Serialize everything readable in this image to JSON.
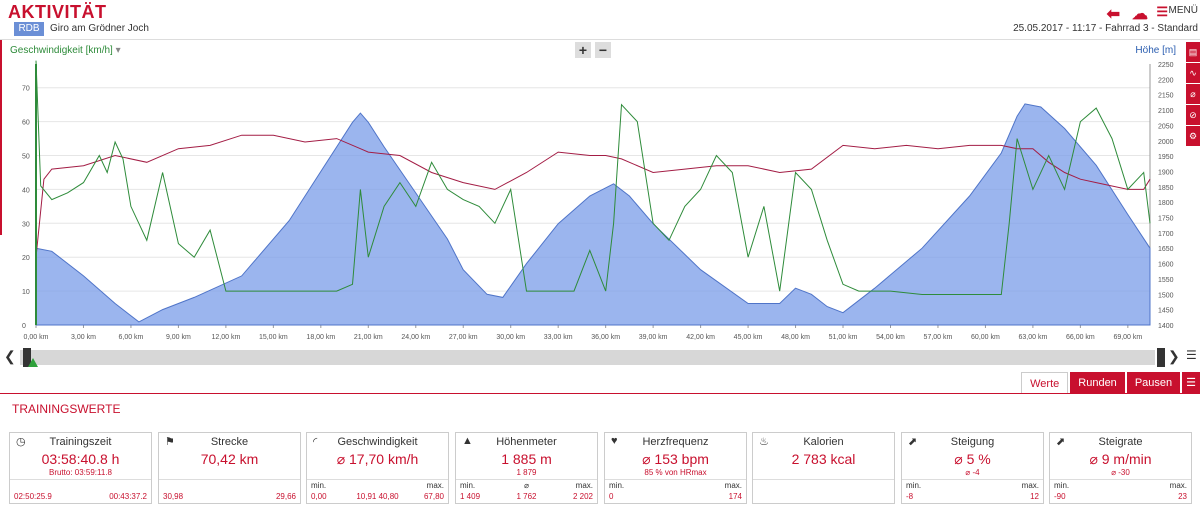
{
  "header": {
    "title": "AKTIVITÄT",
    "badge": "RDB",
    "subtitle": "Giro am Grödner Joch",
    "menu_label": "MENÜ",
    "info": "25.05.2017  -  11:17  -  Fahrrad 3  -  Standard"
  },
  "chart_controls": {
    "zoom_in": "+",
    "zoom_out": "−",
    "left_axis_label": "Geschwindigkeit [km/h]",
    "right_axis_label": "Höhe [m]",
    "dropdown_glyph": "▾"
  },
  "chart_data": {
    "type": "line",
    "x_unit": "km",
    "x_ticks": [
      "0,00 km",
      "3,00 km",
      "6,00 km",
      "9,00 km",
      "12,00 km",
      "15,00 km",
      "18,00 km",
      "21,00 km",
      "24,00 km",
      "27,00 km",
      "30,00 km",
      "33,00 km",
      "36,00 km",
      "39,00 km",
      "42,00 km",
      "45,00 km",
      "48,00 km",
      "51,00 km",
      "54,00 km",
      "57,00 km",
      "60,00 km",
      "63,00 km",
      "66,00 km",
      "69,00 km"
    ],
    "xlim": [
      0,
      70.4
    ],
    "left_axis": {
      "label": "Geschwindigkeit [km/h]",
      "ticks": [
        "0",
        "10",
        "20",
        "30",
        "40",
        "50",
        "60",
        "70"
      ],
      "ylim": [
        0,
        77
      ]
    },
    "right_axis": {
      "label": "Höhe [m]",
      "ticks": [
        "1400",
        "1450",
        "1500",
        "1550",
        "1600",
        "1650",
        "1700",
        "1750",
        "1800",
        "1850",
        "1900",
        "1950",
        "2000",
        "2050",
        "2100",
        "2150",
        "2200",
        "2250"
      ],
      "ylim": [
        1400,
        2250
      ]
    },
    "grid": true,
    "series": [
      {
        "name": "Höhe [m]",
        "axis": "right",
        "style": "area",
        "color": "#7a9ce8",
        "x": [
          0,
          1,
          3,
          5,
          6.5,
          8,
          10,
          13,
          16,
          18,
          19,
          20,
          20.5,
          21,
          22,
          24,
          26,
          27,
          28.5,
          29.5,
          31,
          33,
          35,
          36.5,
          37.5,
          39,
          42,
          45,
          47,
          48,
          49,
          50,
          51,
          53,
          56,
          59,
          61,
          62,
          62.5,
          63.5,
          65,
          67,
          69,
          70.4
        ],
        "y": [
          1650,
          1640,
          1560,
          1470,
          1410,
          1450,
          1490,
          1560,
          1740,
          1900,
          1980,
          2060,
          2090,
          2060,
          1980,
          1830,
          1680,
          1580,
          1500,
          1490,
          1600,
          1730,
          1820,
          1860,
          1820,
          1730,
          1580,
          1470,
          1470,
          1520,
          1500,
          1460,
          1440,
          1520,
          1650,
          1820,
          1960,
          2080,
          2120,
          2110,
          2040,
          1920,
          1760,
          1650
        ]
      },
      {
        "name": "",
        "axis": "left",
        "style": "line",
        "color": "#a31d45",
        "x": [
          0,
          0.5,
          1,
          3,
          5,
          7,
          9,
          11,
          13,
          15,
          17,
          19,
          20.5,
          21,
          23,
          25,
          27,
          29,
          31,
          33,
          35,
          36,
          37,
          39,
          41,
          43,
          45,
          47,
          49,
          51,
          53,
          55,
          57,
          59,
          61,
          62,
          63,
          64,
          65,
          66,
          67,
          68,
          69,
          70,
          70.4
        ],
        "y": [
          20,
          43,
          46,
          47,
          50,
          48,
          52,
          53,
          56,
          56,
          54,
          55,
          52,
          51,
          50,
          45,
          42,
          40,
          45,
          51,
          50,
          50,
          49,
          45,
          46,
          47,
          47,
          45,
          46,
          53,
          52,
          53,
          52,
          53,
          53,
          52,
          52,
          48,
          45,
          43,
          42,
          41,
          40,
          40,
          43
        ]
      },
      {
        "name": "Geschwindigkeit [km/h]",
        "axis": "left",
        "style": "line",
        "color": "#2e8b3a",
        "x": [
          0,
          0.3,
          1,
          2,
          3,
          4,
          4.5,
          5,
          5.5,
          6,
          7,
          8,
          9,
          10,
          11,
          12,
          13,
          15,
          17,
          19,
          20,
          20.5,
          21,
          22,
          23,
          24,
          25,
          26,
          27,
          28,
          29,
          30,
          31,
          32,
          33,
          34,
          35,
          36,
          36.5,
          37,
          38,
          39,
          40,
          41,
          42,
          43,
          44,
          45,
          46,
          47,
          48,
          49,
          50,
          51,
          52,
          54,
          56,
          58,
          60,
          61,
          61.5,
          62,
          63,
          64,
          65,
          66,
          67,
          68,
          69,
          70,
          70.4
        ],
        "y": [
          78,
          41,
          37,
          39,
          42,
          50,
          45,
          54,
          49,
          35,
          25,
          45,
          24,
          20,
          28,
          10,
          10,
          10,
          10,
          10,
          12,
          40,
          20,
          35,
          42,
          35,
          48,
          40,
          37,
          35,
          30,
          40,
          10,
          10,
          10,
          10,
          22,
          10,
          30,
          65,
          60,
          30,
          25,
          35,
          40,
          50,
          45,
          20,
          35,
          10,
          45,
          40,
          25,
          12,
          10,
          10,
          9,
          9,
          9,
          9,
          30,
          55,
          40,
          50,
          40,
          60,
          64,
          55,
          40,
          45,
          30
        ]
      }
    ]
  },
  "tabs": [
    "Werte",
    "Runden",
    "Pausen"
  ],
  "section_title": "TRAININGSWERTE",
  "cards": [
    {
      "title": "Trainingszeit",
      "value": "03:58:40.8 h",
      "sub": "Brutto: 03:59:11.8",
      "left_label": "",
      "left_value": "02:50:25.9",
      "mid_label": "",
      "mid_value": "",
      "right_label": "",
      "right_value": "00:43:37.2",
      "icon": "clock-icon"
    },
    {
      "title": "Strecke",
      "value": "70,42 km",
      "sub": "",
      "left_label": "",
      "left_value": "30,98",
      "mid_label": "",
      "mid_value": "",
      "right_label": "",
      "right_value": "29,66",
      "icon": "flag-icon"
    },
    {
      "title": "Geschwindigkeit",
      "value": "⌀ 17,70 km/h",
      "sub": "",
      "left_label": "min.",
      "left_value": "0,00",
      "mid_label": "",
      "mid_value": "10,91  40,80",
      "right_label": "max.",
      "right_value": "67,80",
      "icon": "speedometer-icon"
    },
    {
      "title": "Höhenmeter",
      "value": "1 885 m",
      "sub": "1 879",
      "left_label": "min.",
      "left_value": "1 409",
      "mid_label": "⌀",
      "mid_value": "1 762",
      "right_label": "max.",
      "right_value": "2 202",
      "icon": "mountain-icon"
    },
    {
      "title": "Herzfrequenz",
      "value": "⌀ 153 bpm",
      "sub": "85 % von HRmax",
      "left_label": "min.",
      "left_value": "0",
      "mid_label": "",
      "mid_value": "",
      "right_label": "max.",
      "right_value": "174",
      "icon": "heart-icon"
    },
    {
      "title": "Kalorien",
      "value": "2 783 kcal",
      "sub": "",
      "left_label": "",
      "left_value": "",
      "mid_label": "",
      "mid_value": "",
      "right_label": "",
      "right_value": "",
      "icon": "flame-icon"
    },
    {
      "title": "Steigung",
      "value": "⌀ 5 %",
      "sub": "⌀ -4",
      "left_label": "min.",
      "left_value": "-8",
      "mid_label": "",
      "mid_value": "",
      "right_label": "max.",
      "right_value": "12",
      "icon": "slope-icon"
    },
    {
      "title": "Steigrate",
      "value": "⌀ 9 m/min",
      "sub": "⌀ -30",
      "left_label": "min.",
      "left_value": "-90",
      "mid_label": "",
      "mid_value": "",
      "right_label": "max.",
      "right_value": "23",
      "icon": "climb-rate-icon"
    }
  ]
}
